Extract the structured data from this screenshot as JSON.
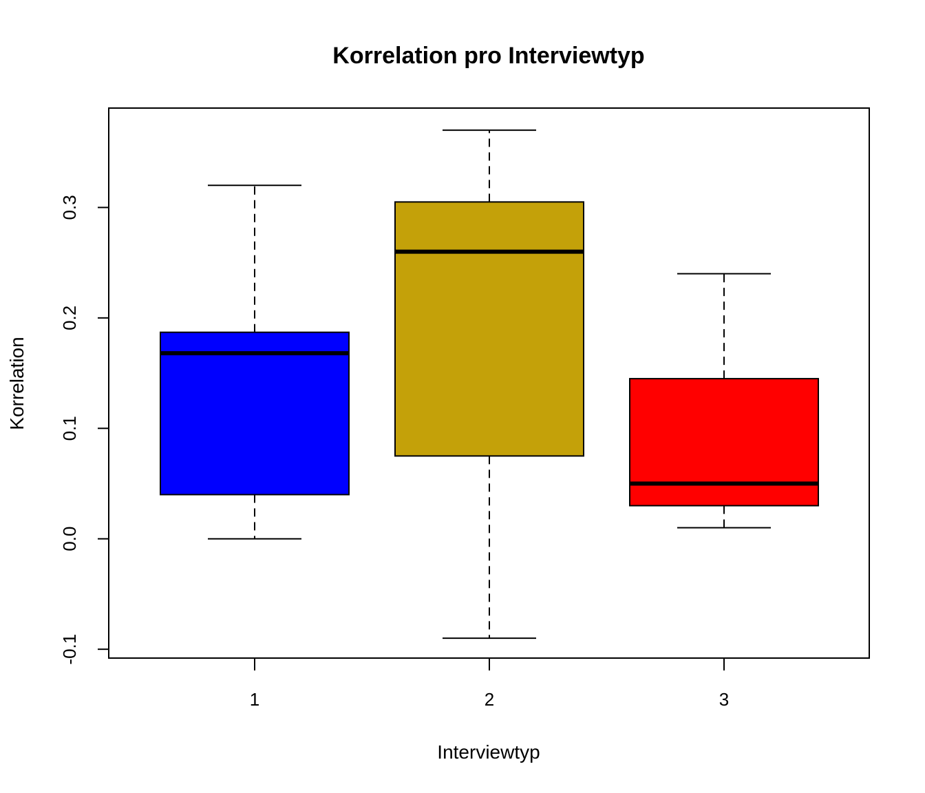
{
  "chart_data": {
    "type": "box",
    "title": "Korrelation pro Interviewtyp",
    "xlabel": "Interviewtyp",
    "ylabel": "Korrelation",
    "ylim": [
      -0.108,
      0.39
    ],
    "yticks": [
      "-0.1",
      "0.0",
      "0.1",
      "0.2",
      "0.3"
    ],
    "categories": [
      "1",
      "2",
      "3"
    ],
    "boxes": [
      {
        "category": "1",
        "min": 0.0,
        "q1": 0.04,
        "median": 0.168,
        "q3": 0.187,
        "max": 0.32,
        "color": "#0000ff"
      },
      {
        "category": "2",
        "min": -0.09,
        "q1": 0.075,
        "median": 0.26,
        "q3": 0.305,
        "max": 0.37,
        "color": "#c4a109"
      },
      {
        "category": "3",
        "min": 0.01,
        "q1": 0.03,
        "median": 0.05,
        "q3": 0.145,
        "max": 0.24,
        "color": "#ff0000"
      }
    ],
    "grid": false,
    "legend": "none"
  }
}
